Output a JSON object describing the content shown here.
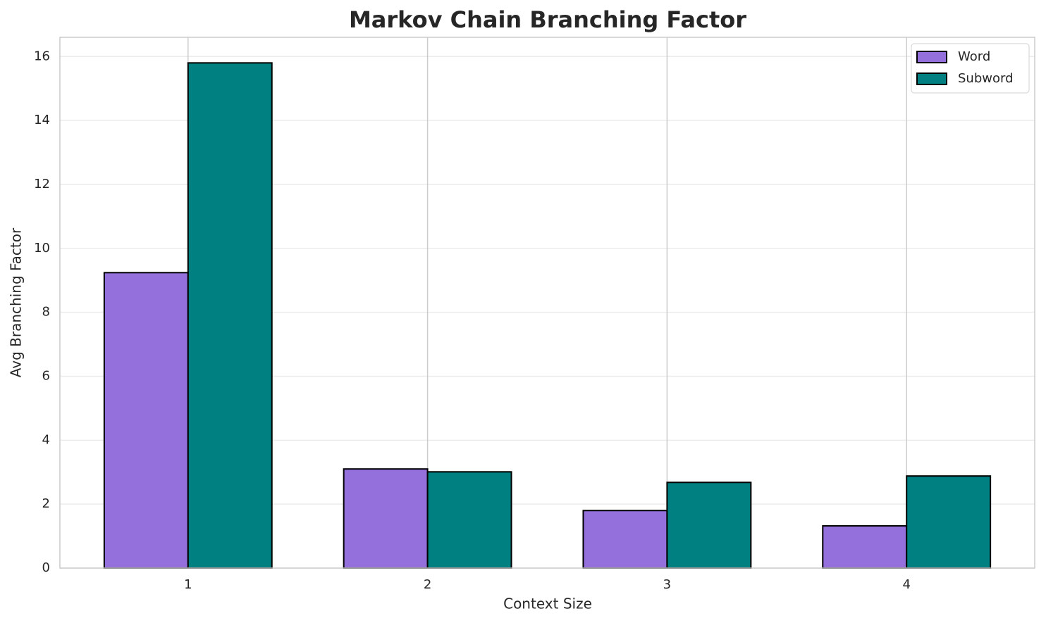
{
  "chart_data": {
    "type": "bar",
    "title": "Markov Chain Branching Factor",
    "xlabel": "Context Size",
    "ylabel": "Avg Branching Factor",
    "categories": [
      "1",
      "2",
      "3",
      "4"
    ],
    "series": [
      {
        "name": "Word",
        "color": "#9370db",
        "values": [
          9.24,
          3.1,
          1.8,
          1.32
        ]
      },
      {
        "name": "Subword",
        "color": "#008080",
        "values": [
          15.8,
          3.01,
          2.68,
          2.88
        ]
      }
    ],
    "ylim": [
      0,
      16.6
    ],
    "yticks": [
      0,
      2,
      4,
      6,
      8,
      10,
      12,
      14,
      16
    ],
    "grid": true,
    "legend": "upper right"
  }
}
